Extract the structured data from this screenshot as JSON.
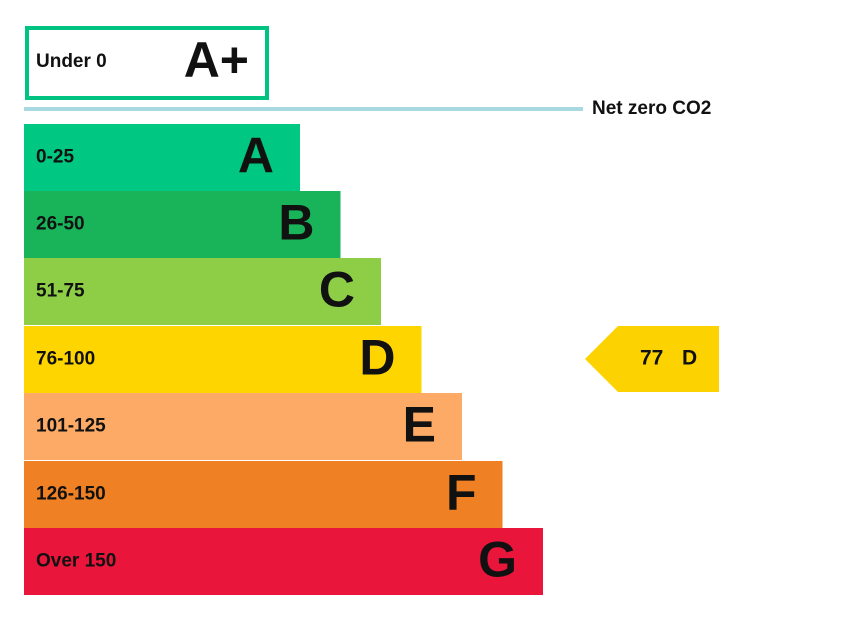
{
  "top_band": {
    "range": "Under 0",
    "letter": "A+",
    "color": "#00c281"
  },
  "net_zero": {
    "label": "Net zero CO2",
    "color": "#a8d8e0"
  },
  "bands": [
    {
      "range": "0-25",
      "letter": "A",
      "color": "#00c781"
    },
    {
      "range": "26-50",
      "letter": "B",
      "color": "#19b459"
    },
    {
      "range": "51-75",
      "letter": "C",
      "color": "#8dce46"
    },
    {
      "range": "76-100",
      "letter": "D",
      "color": "#ffd500"
    },
    {
      "range": "101-125",
      "letter": "E",
      "color": "#fcaa65"
    },
    {
      "range": "126-150",
      "letter": "F",
      "color": "#ef8023"
    },
    {
      "range": "Over 150",
      "letter": "G",
      "color": "#e9153b"
    }
  ],
  "current": {
    "score": "77",
    "letter": "D",
    "color": "#fcd200"
  }
}
